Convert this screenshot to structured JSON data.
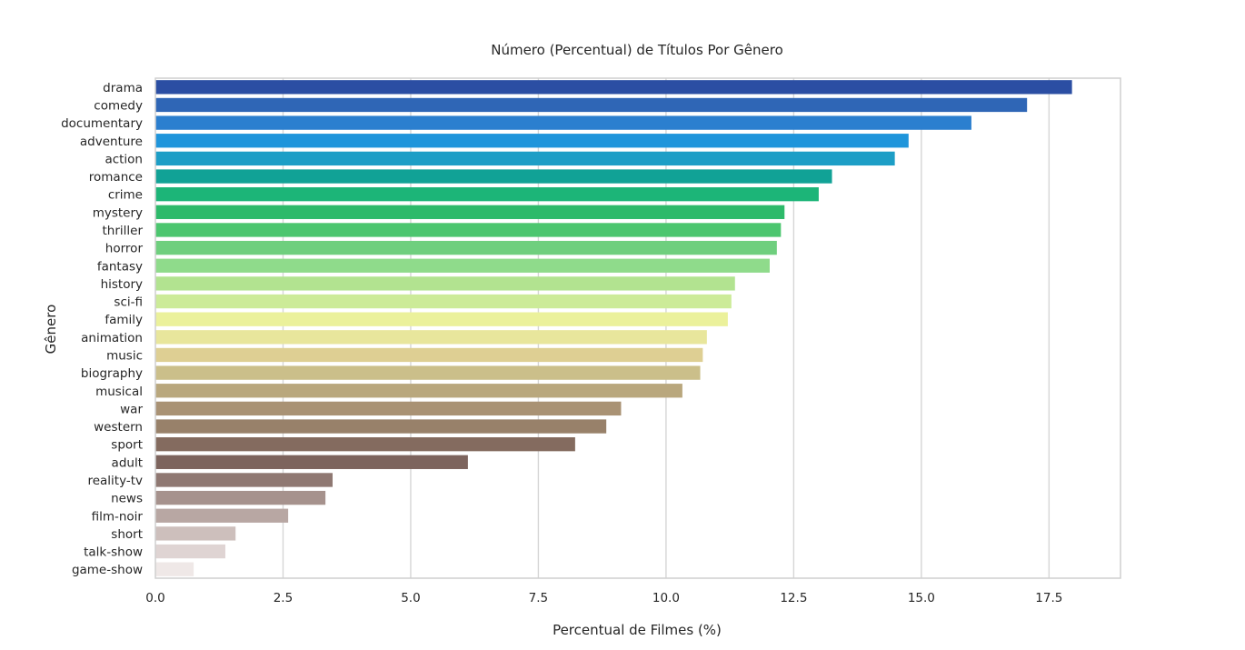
{
  "chart_data": {
    "type": "bar",
    "orientation": "horizontal",
    "title": "Número (Percentual) de Títulos Por Gênero",
    "xlabel": "Percentual de Filmes (%)",
    "ylabel": "Gênero",
    "xlim": [
      0,
      18.9
    ],
    "xticks": [
      "0.0",
      "2.5",
      "5.0",
      "7.5",
      "10.0",
      "12.5",
      "15.0",
      "17.5"
    ],
    "grid": "vertical",
    "legend": "none",
    "categories": [
      "drama",
      "comedy",
      "documentary",
      "adventure",
      "action",
      "romance",
      "crime",
      "mystery",
      "thriller",
      "horror",
      "fantasy",
      "history",
      "sci-fi",
      "family",
      "animation",
      "music",
      "biography",
      "musical",
      "war",
      "western",
      "sport",
      "adult",
      "reality-tv",
      "news",
      "film-noir",
      "short",
      "talk-show",
      "game-show"
    ],
    "values": [
      17.95,
      17.07,
      15.98,
      14.75,
      14.48,
      13.25,
      12.99,
      12.32,
      12.25,
      12.17,
      12.03,
      11.35,
      11.28,
      11.21,
      10.8,
      10.72,
      10.67,
      10.32,
      9.12,
      8.83,
      8.22,
      6.12,
      3.47,
      3.33,
      2.6,
      1.57,
      1.37,
      0.75
    ],
    "colors": [
      "#2b4ea3",
      "#2f66b6",
      "#2b7fcf",
      "#1f95db",
      "#1d9ec6",
      "#11a296",
      "#1cb578",
      "#2dba6a",
      "#4cc66f",
      "#6fcf7e",
      "#8fdb8b",
      "#b2e390",
      "#cceb98",
      "#ebf19b",
      "#e8e69c",
      "#decf93",
      "#cbbf8a",
      "#b9a77d",
      "#a99274",
      "#98816a",
      "#846b5f",
      "#7d645d",
      "#8f7872",
      "#a6928d",
      "#b8a7a3",
      "#cdbfbc",
      "#dfd4d3",
      "#efe8e7"
    ]
  }
}
